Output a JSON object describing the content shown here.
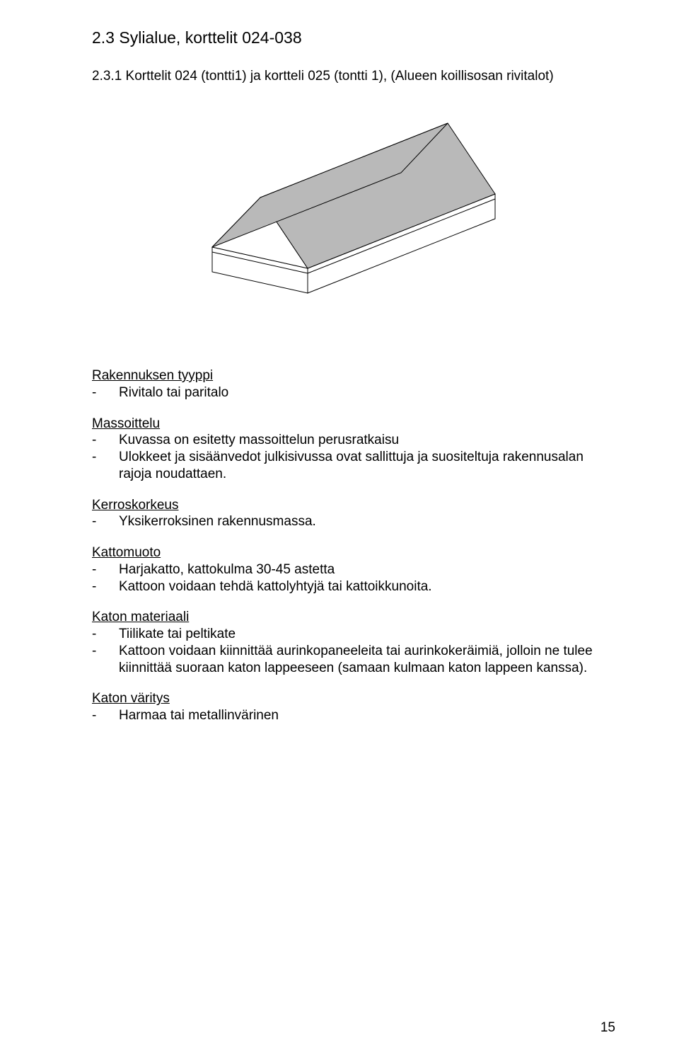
{
  "heading": "2.3   Sylialue, korttelit 024-038",
  "subheading": "2.3.1 Korttelit 024 (tontti1) ja kortteli 025 (tontti 1), (Alueen koillisosan rivitalot)",
  "diagram": {
    "type": "isometric-shape",
    "roof_fill": "#b9b9b9",
    "wall_fill": "#ffffff",
    "stroke": "#000000",
    "background": "#ffffff"
  },
  "sections": [
    {
      "title": "Rakennuksen tyyppi",
      "items": [
        "Rivitalo tai paritalo"
      ]
    },
    {
      "title": "Massoittelu",
      "items": [
        "Kuvassa on esitetty massoittelun perusratkaisu",
        "Ulokkeet ja sisäänvedot julkisivussa ovat sallittuja ja suositeltuja rakennusalan rajoja noudattaen."
      ]
    },
    {
      "title": "Kerroskorkeus",
      "items": [
        "Yksikerroksinen rakennusmassa."
      ]
    },
    {
      "title": "Kattomuoto",
      "items": [
        "Harjakatto, kattokulma 30-45 astetta",
        "Kattoon voidaan tehdä kattolyhtyjä tai kattoikkunoita."
      ]
    },
    {
      "title": "Katon materiaali",
      "items": [
        "Tiilikate tai peltikate",
        "Kattoon voidaan kiinnittää aurinkopaneeleita tai aurinkokeräimiä, jolloin ne tulee kiinnittää suoraan katon lappeeseen (samaan kulmaan katon lappeen kanssa)."
      ]
    },
    {
      "title": "Katon väritys",
      "items": [
        "Harmaa tai metallinvärinen"
      ]
    }
  ],
  "page_number": "15"
}
